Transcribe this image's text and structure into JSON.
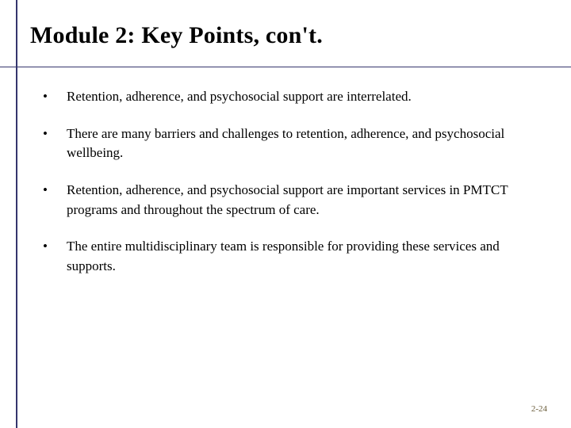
{
  "slide": {
    "title": "Module 2: Key Points, con't.",
    "bullets": [
      "Retention, adherence, and psychosocial support are interrelated.",
      "There are many barriers and challenges to retention, adherence, and psychosocial wellbeing.",
      "Retention, adherence, and psychosocial support are important services in PMTCT programs and throughout the spectrum of care.",
      "The entire multidisciplinary team is responsible for providing these services and supports."
    ],
    "page_number": "2-24",
    "colors": {
      "rule": "#34356d",
      "text": "#000000",
      "pagenum": "#6a5c3a",
      "background": "#ffffff"
    }
  }
}
